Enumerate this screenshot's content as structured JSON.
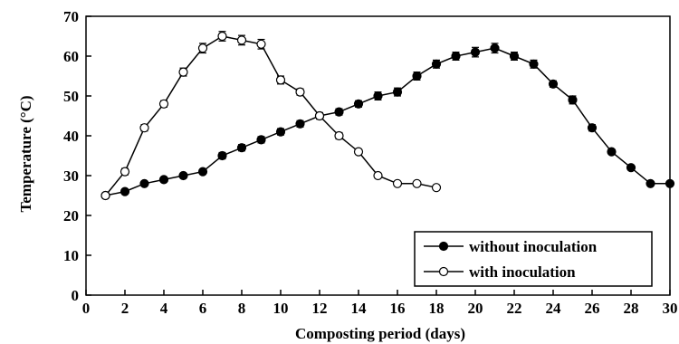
{
  "chart_data": {
    "type": "line",
    "title": "",
    "xlabel": "Composting period (days)",
    "ylabel": "Temperature (°C)",
    "xlim": [
      0,
      30
    ],
    "ylim": [
      0,
      70
    ],
    "xticks": [
      0,
      2,
      4,
      6,
      8,
      10,
      12,
      14,
      16,
      18,
      20,
      22,
      24,
      26,
      28,
      30
    ],
    "yticks": [
      0,
      10,
      20,
      30,
      40,
      50,
      60,
      70
    ],
    "grid": false,
    "legend_position": "bottom-right",
    "series": [
      {
        "name": "without inoculation",
        "marker": "filled-circle",
        "color": "#000000",
        "x": [
          1,
          2,
          3,
          4,
          5,
          6,
          7,
          8,
          9,
          10,
          11,
          12,
          13,
          14,
          15,
          16,
          17,
          18,
          19,
          20,
          21,
          22,
          23,
          24,
          25,
          26,
          27,
          28,
          29,
          30
        ],
        "y": [
          25,
          26,
          28,
          29,
          30,
          31,
          35,
          37,
          39,
          41,
          43,
          45,
          46,
          48,
          50,
          51,
          55,
          58,
          60,
          61,
          62,
          60,
          58,
          53,
          49,
          42,
          36,
          32,
          28,
          28
        ],
        "err": [
          0.5,
          0.5,
          0.5,
          0.5,
          0.5,
          0.5,
          0.8,
          0.8,
          0.8,
          0.8,
          0.8,
          0.8,
          0.8,
          0.8,
          1,
          1,
          1,
          1,
          1,
          1.2,
          1.2,
          1,
          1,
          0.8,
          1,
          0.8,
          0.6,
          0.5,
          0.5,
          0.5
        ]
      },
      {
        "name": "with inoculation",
        "marker": "open-circle",
        "color": "#000000",
        "x": [
          1,
          2,
          3,
          4,
          5,
          6,
          7,
          8,
          9,
          10,
          11,
          12,
          13,
          14,
          15,
          16,
          17,
          18
        ],
        "y": [
          25,
          31,
          42,
          48,
          56,
          62,
          65,
          64,
          63,
          54,
          51,
          45,
          40,
          36,
          30,
          28,
          28,
          27
        ],
        "err": [
          0.5,
          0.8,
          0.8,
          0.8,
          1,
          1.2,
          1.2,
          1.2,
          1.2,
          1,
          0.8,
          0.8,
          0.8,
          0.6,
          0.5,
          0.5,
          0.5,
          0.5
        ]
      }
    ]
  }
}
